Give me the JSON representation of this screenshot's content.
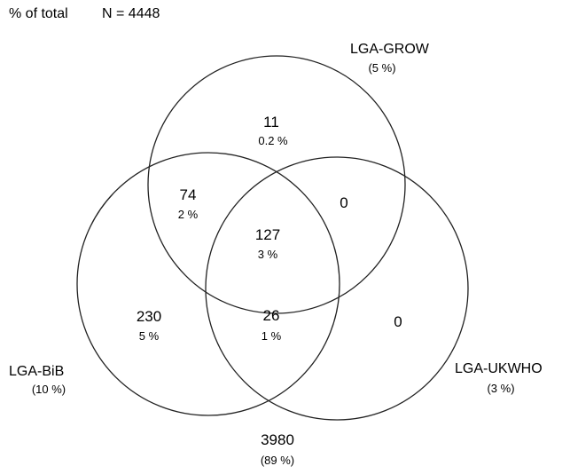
{
  "header": {
    "total_label": "% of total",
    "n_label": "N = 4448"
  },
  "sets": {
    "grow": {
      "name": "LGA-GROW",
      "percent": "(5 %)"
    },
    "bib": {
      "name": "LGA-BiB",
      "percent": "(10 %)"
    },
    "ukwho": {
      "name": "LGA-UKWHO",
      "percent": "(3 %)"
    }
  },
  "regions": {
    "grow_only": {
      "count": "11",
      "percent": "0.2 %"
    },
    "grow_bib": {
      "count": "74",
      "percent": "2 %"
    },
    "grow_ukwho": {
      "count": "0"
    },
    "all_three": {
      "count": "127",
      "percent": "3 %"
    },
    "bib_only": {
      "count": "230",
      "percent": "5 %"
    },
    "bib_ukwho": {
      "count": "26",
      "percent": "1 %"
    },
    "ukwho_only": {
      "count": "0"
    },
    "outside": {
      "count": "3980",
      "percent": "(89 %)"
    }
  }
}
